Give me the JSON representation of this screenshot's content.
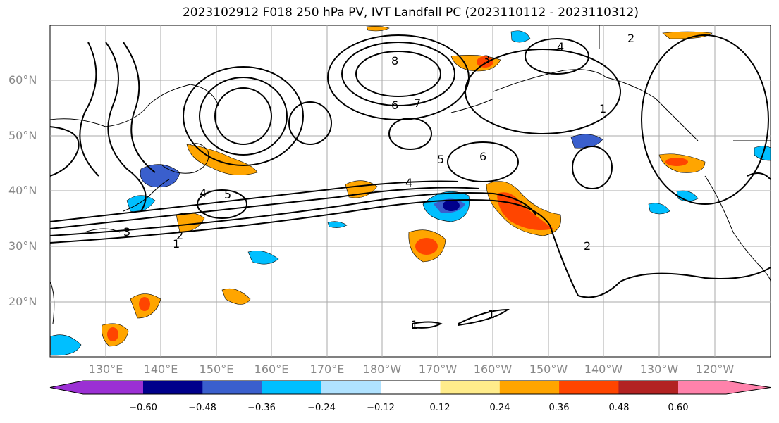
{
  "title": "2023102912 F018 250 hPa PV, IVT Landfall PC (2023110112 - 2023110312)",
  "lat_labels": [
    "60°N",
    "50°N",
    "40°N",
    "30°N",
    "20°N"
  ],
  "lon_labels": [
    "130°E",
    "140°E",
    "150°E",
    "160°E",
    "170°E",
    "180°W",
    "170°W",
    "160°W",
    "150°W",
    "140°W",
    "130°W",
    "120°W"
  ],
  "colorbar": {
    "ticks": [
      "−0.60",
      "−0.48",
      "−0.36",
      "−0.24",
      "−0.12",
      "0.12",
      "0.24",
      "0.36",
      "0.48",
      "0.60"
    ],
    "colors": [
      "#9b30d4",
      "#00008b",
      "#3a5fcd",
      "#00bfff",
      "#b0e2ff",
      "#ffffff",
      "#ffec8b",
      "#ffa500",
      "#ff4500",
      "#b22222",
      "#ff82ab"
    ]
  },
  "contour_labels": [
    "1",
    "2",
    "3",
    "4",
    "5",
    "6",
    "7",
    "8"
  ]
}
